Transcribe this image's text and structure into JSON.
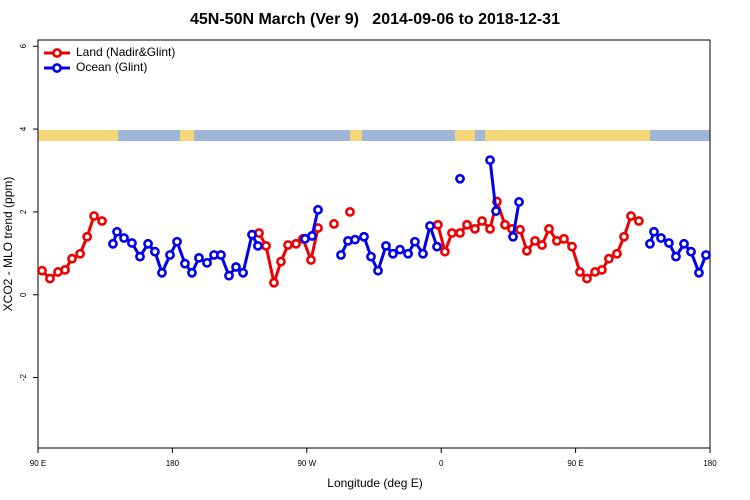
{
  "chart_data": {
    "type": "line",
    "title": "45N-50N March (Ver 9)   2014-09-06 to 2018-12-31",
    "xlabel": "Longitude (deg E)",
    "ylabel": "XCO2 - MLO trend (ppm)",
    "xlim": [
      90,
      540
    ],
    "ylim": [
      -3.7,
      6.15
    ],
    "xticks": [
      {
        "value": 90,
        "label": "90 E"
      },
      180,
      {
        "value": 270,
        "label": "90 W"
      },
      {
        "value": 360,
        "label": "0"
      },
      {
        "value": 450,
        "label": "90 E"
      },
      {
        "value": 540,
        "label": "180"
      }
    ],
    "yticks": [
      -2,
      0,
      2,
      4,
      6
    ],
    "legend": "top-left",
    "series": [
      {
        "name": "Land (Nadir&Glint)",
        "color": "#ee0000",
        "x": [
          92.7,
          98.0,
          103.4,
          108.1,
          112.8,
          118.2,
          122.9,
          127.5,
          132.9,
          null,
          238.0,
          242.7,
          248.0,
          252.7,
          257.4,
          262.8,
          267.4,
          272.8,
          277.5,
          null,
          288.2,
          null,
          298.9,
          null,
          357.8,
          362.5,
          367.2,
          372.6,
          377.3,
          382.6,
          387.3,
          392.7,
          397.3,
          402.7,
          407.4,
          412.8,
          417.4,
          422.8,
          427.5,
          432.2,
          437.5,
          442.2,
          447.6,
          452.9,
          457.6,
          463.0,
          467.6,
          472.3,
          477.7,
          482.4,
          487.1,
          492.4
        ],
        "values": [
          0.58,
          0.39,
          0.55,
          0.6,
          0.87,
          0.99,
          1.4,
          1.9,
          1.78,
          null,
          1.49,
          1.18,
          0.29,
          0.8,
          1.2,
          1.23,
          1.35,
          0.84,
          1.61,
          null,
          1.71,
          null,
          2.0,
          null,
          1.69,
          1.04,
          1.49,
          1.49,
          1.69,
          1.59,
          1.78,
          1.59,
          2.25,
          1.69,
          1.59,
          1.57,
          1.06,
          1.3,
          1.2,
          1.59,
          1.3,
          1.35,
          1.16,
          0.55,
          0.39,
          0.55,
          0.6,
          0.87,
          0.99,
          1.4,
          1.9,
          1.78
        ]
      },
      {
        "name": "Ocean (Glint)",
        "color": "#0000ee",
        "x": [
          140.2,
          142.9,
          147.6,
          152.9,
          158.3,
          163.7,
          168.3,
          173.0,
          178.4,
          183.1,
          188.4,
          193.1,
          197.8,
          203.2,
          207.9,
          212.5,
          217.9,
          222.6,
          227.3,
          233.3,
          237.3,
          null,
          268.8,
          273.5,
          277.5,
          null,
          292.9,
          297.6,
          302.3,
          308.3,
          313.0,
          317.7,
          323.0,
          327.7,
          332.4,
          337.8,
          342.4,
          347.8,
          352.5,
          357.2,
          null,
          372.6,
          null,
          392.7,
          396.7,
          null,
          408.1,
          412.1,
          null,
          499.8,
          502.5,
          507.2,
          512.5,
          517.2,
          522.6,
          527.3,
          532.6,
          537.3
        ],
        "values": [
          1.23,
          1.52,
          1.37,
          1.25,
          0.92,
          1.23,
          1.04,
          0.53,
          0.96,
          1.28,
          0.75,
          0.53,
          0.89,
          0.77,
          0.96,
          0.96,
          0.46,
          0.67,
          0.53,
          1.45,
          1.18,
          null,
          1.35,
          1.42,
          2.05,
          null,
          0.96,
          1.3,
          1.33,
          1.4,
          0.92,
          0.58,
          1.18,
          0.99,
          1.09,
          0.99,
          1.28,
          0.99,
          1.66,
          1.16,
          null,
          2.8,
          null,
          3.25,
          2.02,
          null,
          1.4,
          2.24,
          null,
          1.23,
          1.52,
          1.37,
          1.25,
          0.92,
          1.23,
          1.04,
          0.53,
          0.96
        ]
      }
    ]
  }
}
